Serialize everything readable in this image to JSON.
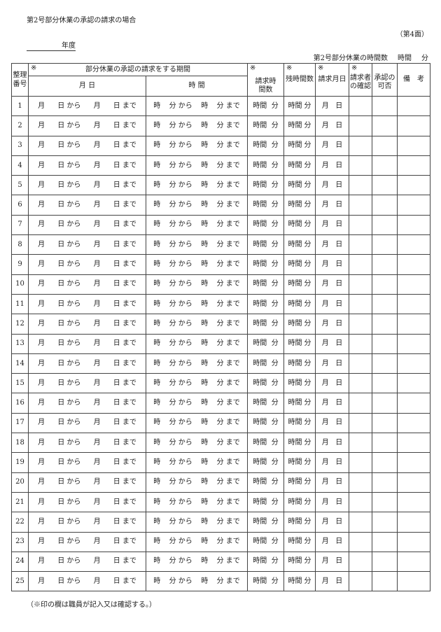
{
  "title": "第2号部分休業の承認の請求の場合",
  "face": "（第4面）",
  "year_label": "年度",
  "hours_label": "第2号部分休業の時間数",
  "hours_unit_h": "時間",
  "hours_unit_m": "分",
  "mark": "※",
  "headers": {
    "number": "整理番号",
    "period": "部分休業の承認の請求をする期間",
    "date": "月 日",
    "time": "時 間",
    "requested_hours": "請求時間数",
    "remaining_hours": "残時間数",
    "request_date": "請求月日",
    "requester_confirm": "請求者の確認",
    "approval": "承認の可否",
    "remarks": "備　考"
  },
  "row_cells": {
    "date": [
      "月",
      "日 から",
      "月",
      "日 まで"
    ],
    "time": [
      "時",
      "分 から",
      "時",
      "分 まで"
    ],
    "requested": [
      "時間",
      "分"
    ],
    "remaining": [
      "時間",
      "分"
    ],
    "request_date": [
      "月",
      "日"
    ]
  },
  "rows": [
    1,
    2,
    3,
    4,
    5,
    6,
    7,
    8,
    9,
    10,
    11,
    12,
    13,
    14,
    15,
    16,
    17,
    18,
    19,
    20,
    21,
    22,
    23,
    24,
    25
  ],
  "note": "（※印の欄は職員が記入又は確認する。）"
}
